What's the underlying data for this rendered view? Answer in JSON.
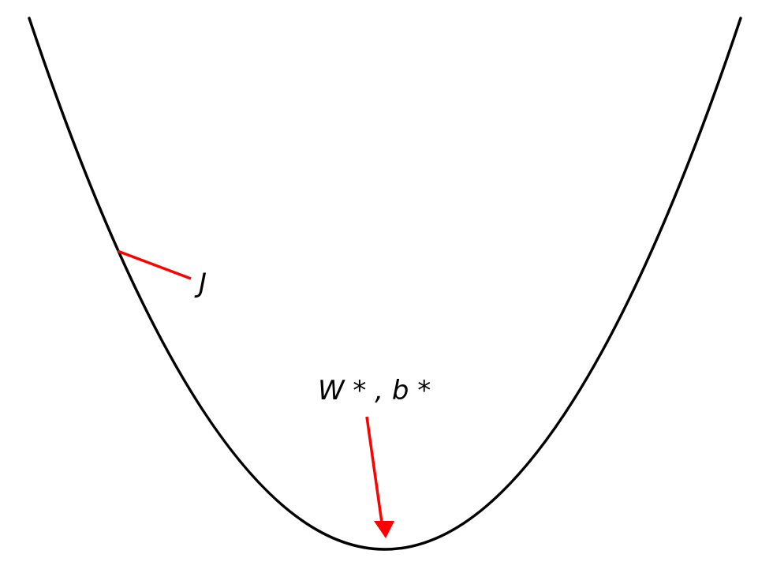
{
  "diagram": {
    "labels": {
      "cost": "J",
      "minimum": "W * , b *"
    },
    "colors": {
      "curve": "#000000",
      "annotation": "#ff0000",
      "text": "#000000",
      "background": "#ffffff"
    }
  }
}
